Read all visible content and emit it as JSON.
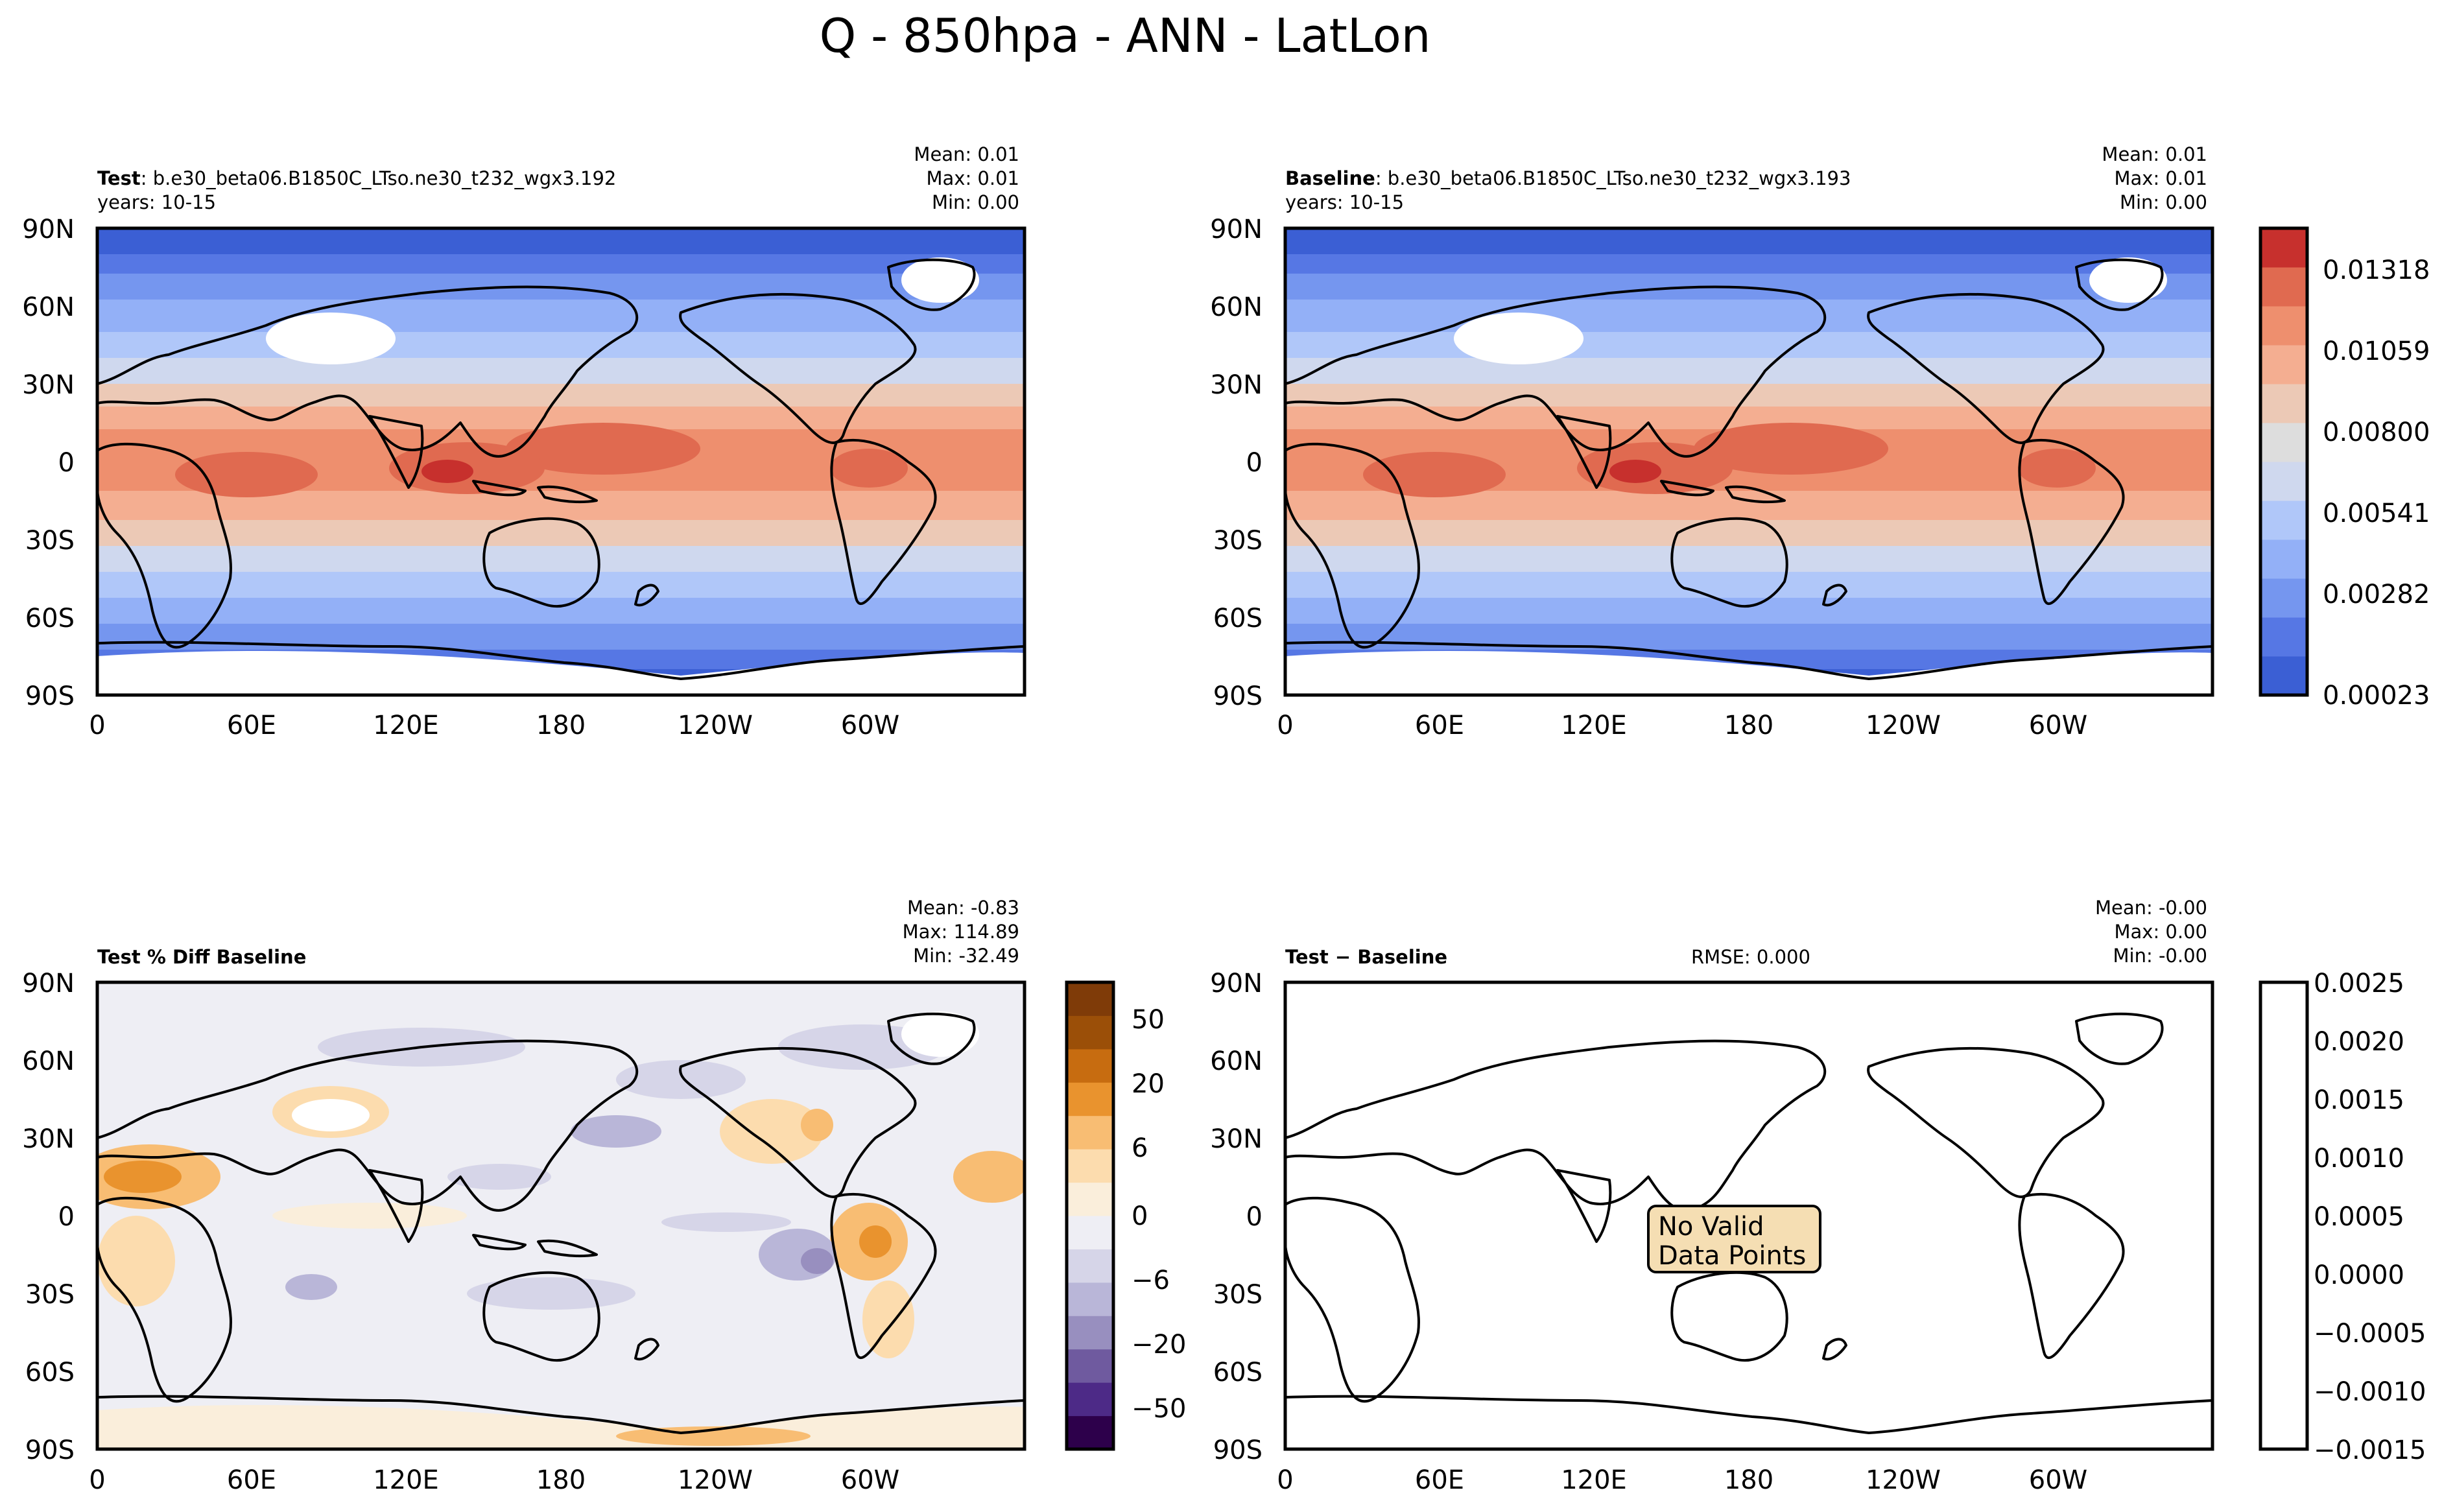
{
  "figure": {
    "title": "Q - 850hpa - ANN - LatLon"
  },
  "axes": {
    "lat_labels": [
      "90N",
      "60N",
      "30N",
      "0",
      "30S",
      "60S",
      "90S"
    ],
    "lon_labels": [
      "0",
      "60E",
      "120E",
      "180",
      "120W",
      "60W"
    ]
  },
  "panels": {
    "test": {
      "label_bold": "Test",
      "label_rest": ": b.e30_beta06.B1850C_LTso.ne30_t232_wgx3.192",
      "years": "years: 10-15",
      "mean": "Mean:  0.01",
      "max": "Max:  0.01",
      "min": "Min:  0.00"
    },
    "baseline": {
      "label_bold": "Baseline",
      "label_rest": ": b.e30_beta06.B1850C_LTso.ne30_t232_wgx3.193",
      "years": "years: 10-15",
      "mean": "Mean:  0.01",
      "max": "Max:  0.01",
      "min": "Min:  0.00"
    },
    "pctdiff": {
      "label_bold": "Test % Diff Baseline",
      "mean": "Mean: -0.83",
      "max": "Max: 114.89",
      "min": "Min: -32.49"
    },
    "diff": {
      "label_bold": "Test − Baseline",
      "rmse": "RMSE: 0.000",
      "mean": "Mean: -0.00",
      "max": "Max:  0.00",
      "min": "Min: -0.00",
      "note_line1": "No Valid",
      "note_line2": "Data Points"
    }
  },
  "colorbars": {
    "main": {
      "labels": [
        "0.01318",
        "0.01059",
        "0.00800",
        "0.00541",
        "0.00282",
        "0.00023"
      ],
      "colors": [
        "#3b5fd4",
        "#5677e4",
        "#7596ef",
        "#93b0f7",
        "#b0c7f9",
        "#cfd8ee",
        "#dddddd",
        "#ecc9b6",
        "#f4ae91",
        "#ee8f6e",
        "#e06a50",
        "#c7302d"
      ]
    },
    "pct": {
      "labels": [
        "50",
        "20",
        "6",
        "0",
        "−6",
        "−20",
        "−50"
      ],
      "colors": [
        "#2d004b",
        "#4d2a87",
        "#6f5a9f",
        "#988fbf",
        "#b9b6d8",
        "#d6d5e8",
        "#eeeef4",
        "#faeedb",
        "#fcdcae",
        "#f8bd73",
        "#e9932e",
        "#c76c10",
        "#9b4f08",
        "#7f3b08"
      ]
    },
    "diff": {
      "labels": [
        "0.0025",
        "0.0020",
        "0.0015",
        "0.0010",
        "0.0005",
        "0.0000",
        "−0.0005",
        "−0.0010",
        "−0.0015"
      ]
    }
  }
}
